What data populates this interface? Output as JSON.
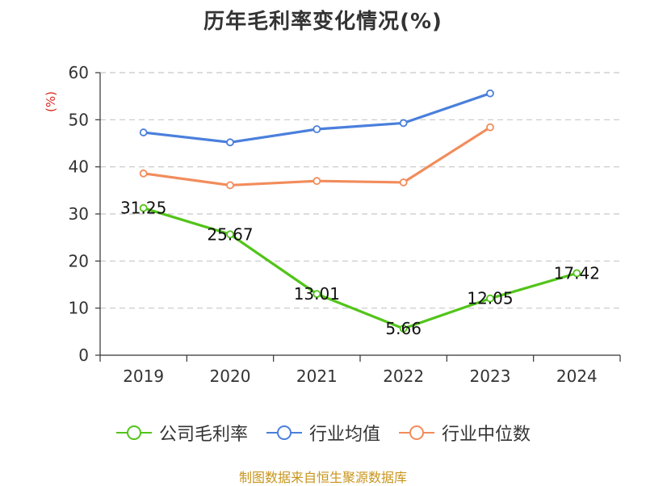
{
  "title": "历年毛利率变化情况(%)",
  "source": "制图数据来自恒生聚源数据库",
  "colors": {
    "company": "#52c41a",
    "industry_avg": "#4a7fdc",
    "industry_median": "#f28c5b",
    "ylabel": "#d9281c",
    "source": "#c8951c"
  },
  "chart_data": {
    "type": "line",
    "title": "历年毛利率变化情况(%)",
    "xlabel": "",
    "ylabel": "(%)",
    "categories": [
      "2019",
      "2020",
      "2021",
      "2022",
      "2023",
      "2024"
    ],
    "ylim": [
      0,
      60
    ],
    "yticks": [
      0,
      10,
      20,
      30,
      40,
      50,
      60
    ],
    "grid": true,
    "legend_position": "bottom",
    "series": [
      {
        "name": "公司毛利率",
        "key": "company",
        "values": [
          31.25,
          25.67,
          13.01,
          5.66,
          12.05,
          17.42
        ],
        "labels": [
          "31.25",
          "25.67",
          "13.01",
          "5.66",
          "12.05",
          "17.42"
        ]
      },
      {
        "name": "行业均值",
        "key": "industry_avg",
        "values": [
          47.3,
          45.2,
          48.0,
          49.3,
          55.6,
          null
        ]
      },
      {
        "name": "行业中位数",
        "key": "industry_median",
        "values": [
          38.6,
          36.1,
          37.0,
          36.7,
          48.4,
          null
        ]
      }
    ]
  }
}
